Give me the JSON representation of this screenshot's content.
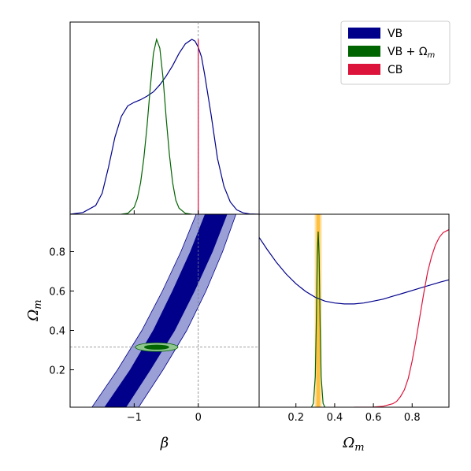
{
  "colors": {
    "vb": "#00008b",
    "vb_light": "#9a9fd6",
    "vb_om": "#006400",
    "vb_om_light": "#8fc58f",
    "cb": "#dc143c",
    "prior_band": "#ffbf3f",
    "prior_band_light": "#ffe0a0",
    "reference_line": "#808080"
  },
  "legend": {
    "placement": "top-right",
    "items": [
      {
        "key": "vb",
        "label": "VB"
      },
      {
        "key": "vb_om",
        "label": "VB + Ω",
        "sub": "m"
      },
      {
        "key": "cb",
        "label": "CB"
      }
    ]
  },
  "chart_data": [
    {
      "panel": "beta-marginal",
      "type": "line",
      "xlim": [
        -2,
        0.95
      ],
      "ylim": [
        0,
        1.0
      ],
      "reference_x": 0,
      "series": [
        {
          "key": "vb",
          "name": "VB",
          "x": [
            -2.0,
            -1.8,
            -1.6,
            -1.5,
            -1.4,
            -1.3,
            -1.2,
            -1.1,
            -1.0,
            -0.9,
            -0.8,
            -0.7,
            -0.6,
            -0.5,
            -0.4,
            -0.3,
            -0.2,
            -0.1,
            -0.05,
            0.0,
            0.05,
            0.1,
            0.2,
            0.3,
            0.4,
            0.5,
            0.6,
            0.7,
            0.8,
            0.95
          ],
          "y": [
            0.0,
            0.01,
            0.05,
            0.12,
            0.27,
            0.44,
            0.56,
            0.62,
            0.64,
            0.655,
            0.675,
            0.7,
            0.74,
            0.79,
            0.85,
            0.92,
            0.975,
            1.0,
            0.99,
            0.955,
            0.9,
            0.8,
            0.57,
            0.32,
            0.16,
            0.07,
            0.025,
            0.008,
            0.002,
            0.0
          ]
        },
        {
          "key": "vb_om",
          "name": "VB + Ω_m",
          "x": [
            -1.2,
            -1.1,
            -1.0,
            -0.95,
            -0.9,
            -0.85,
            -0.8,
            -0.75,
            -0.7,
            -0.65,
            -0.6,
            -0.55,
            -0.5,
            -0.45,
            -0.4,
            -0.35,
            -0.3,
            -0.2,
            -0.1
          ],
          "y": [
            0.0,
            0.005,
            0.04,
            0.09,
            0.18,
            0.32,
            0.5,
            0.72,
            0.92,
            1.0,
            0.95,
            0.78,
            0.55,
            0.34,
            0.18,
            0.08,
            0.035,
            0.005,
            0.0
          ]
        },
        {
          "key": "cb",
          "name": "CB",
          "x": [
            0,
            0
          ],
          "y": [
            0,
            1.0
          ]
        }
      ]
    },
    {
      "panel": "beta-omega-joint",
      "type": "area",
      "xlim": [
        -2,
        0.95
      ],
      "ylim": [
        0.01,
        0.99
      ],
      "xlabel": "β",
      "ylabel": "Ω",
      "ylabel_sub": "m",
      "xticks": [
        -1,
        0
      ],
      "xtick_labels": [
        "−1",
        "0"
      ],
      "yticks": [
        0.2,
        0.4,
        0.6,
        0.8
      ],
      "ytick_labels": [
        "0.2",
        "0.4",
        "0.6",
        "0.8"
      ],
      "reference_x": 0,
      "reference_y": 0.315,
      "bands": [
        {
          "key": "vb_light",
          "level": "95%",
          "y": [
            0.0,
            0.2,
            0.4,
            0.6,
            0.8,
            1.0
          ],
          "x_left": [
            -1.68,
            -1.26,
            -0.88,
            -0.56,
            -0.27,
            -0.02
          ],
          "x_right": [
            -0.95,
            -0.55,
            -0.18,
            0.12,
            0.38,
            0.6
          ]
        },
        {
          "key": "vb",
          "level": "68%",
          "y": [
            0.0,
            0.2,
            0.4,
            0.6,
            0.8,
            1.0
          ],
          "x_left": [
            -1.48,
            -1.06,
            -0.7,
            -0.4,
            -0.12,
            0.12
          ],
          "x_right": [
            -1.15,
            -0.75,
            -0.37,
            -0.06,
            0.22,
            0.46
          ]
        }
      ],
      "ellipses": [
        {
          "key": "vb_om_light",
          "cx": -0.65,
          "cy": 0.315,
          "rx": 0.33,
          "ry": 0.022
        },
        {
          "key": "vb_om",
          "cx": -0.65,
          "cy": 0.315,
          "rx": 0.19,
          "ry": 0.011
        }
      ]
    },
    {
      "panel": "omega-marginal",
      "type": "line",
      "xlim": [
        0.01,
        0.99
      ],
      "ylim": [
        0,
        1.0
      ],
      "xlabel": "Ω",
      "xlabel_sub": "m",
      "xticks": [
        0.2,
        0.4,
        0.6,
        0.8
      ],
      "xtick_labels": [
        "0.2",
        "0.4",
        "0.6",
        "0.8"
      ],
      "prior_band": {
        "outer": [
          0.297,
          0.333
        ],
        "inner": [
          0.306,
          0.324
        ]
      },
      "series": [
        {
          "key": "vb",
          "name": "VB",
          "x": [
            0.01,
            0.05,
            0.1,
            0.15,
            0.2,
            0.25,
            0.3,
            0.35,
            0.4,
            0.45,
            0.5,
            0.55,
            0.6,
            0.65,
            0.7,
            0.75,
            0.8,
            0.85,
            0.9,
            0.95,
            0.99
          ],
          "y": [
            0.88,
            0.82,
            0.75,
            0.69,
            0.64,
            0.6,
            0.57,
            0.55,
            0.54,
            0.535,
            0.535,
            0.54,
            0.55,
            0.56,
            0.575,
            0.59,
            0.605,
            0.62,
            0.635,
            0.65,
            0.66
          ]
        },
        {
          "key": "vb_om",
          "name": "VB + Ω_m",
          "x": [
            0.28,
            0.29,
            0.3,
            0.305,
            0.31,
            0.315,
            0.32,
            0.325,
            0.33,
            0.34,
            0.35
          ],
          "y": [
            0.0,
            0.02,
            0.16,
            0.42,
            0.78,
            0.91,
            0.78,
            0.42,
            0.16,
            0.02,
            0.0
          ]
        },
        {
          "key": "cb",
          "name": "CB",
          "x": [
            0.5,
            0.55,
            0.6,
            0.65,
            0.7,
            0.72,
            0.74,
            0.76,
            0.78,
            0.8,
            0.82,
            0.84,
            0.86,
            0.88,
            0.9,
            0.92,
            0.94,
            0.96,
            0.98,
            0.99
          ],
          "y": [
            0.0,
            0.0,
            0.001,
            0.005,
            0.018,
            0.03,
            0.055,
            0.09,
            0.15,
            0.24,
            0.35,
            0.47,
            0.59,
            0.7,
            0.78,
            0.84,
            0.88,
            0.905,
            0.915,
            0.92
          ]
        }
      ]
    }
  ]
}
